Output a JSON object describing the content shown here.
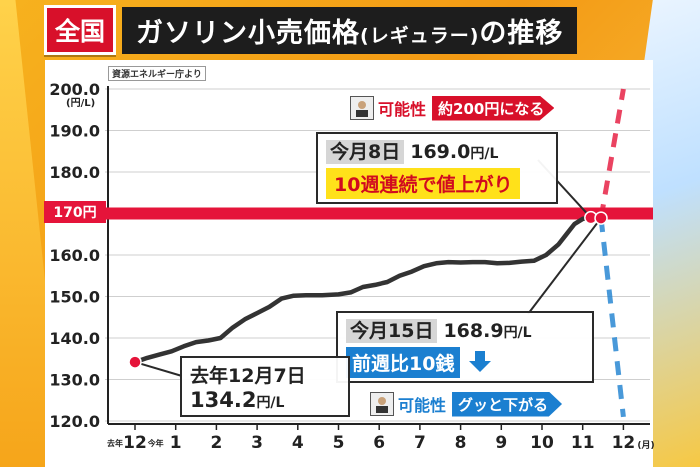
{
  "header": {
    "badge": "全国",
    "title_main": "ガソリン小売価格",
    "title_sub": "(レギュラー)",
    "title_end": "の推移"
  },
  "source": "資源エネルギー庁より",
  "y_unit": "(円/L)",
  "reference_line": {
    "value": 170,
    "label": "170円"
  },
  "callouts": {
    "latest": {
      "tag": "今月8日",
      "value": "169.0",
      "unit": "円/L",
      "note": "10週連続で値上がり"
    },
    "current": {
      "tag": "今月15日",
      "value": "168.9",
      "unit": "円/L",
      "note": "前週比10銭",
      "arrow": "down-arrow-icon"
    },
    "start": {
      "line1": "去年12月7日",
      "value": "134.2",
      "unit": "円/L"
    }
  },
  "scenarios": {
    "up": {
      "label": "可能性",
      "text": "約200円になる",
      "color": "#d8102a"
    },
    "down": {
      "label": "可能性",
      "text": "グッと下がる",
      "color": "#1b7fd0"
    }
  },
  "colors": {
    "line": "#333333",
    "ref_line": "#e5143a",
    "grid": "#cfcfcf",
    "marker": "#e5143a"
  },
  "chart_data": {
    "type": "line",
    "title": "ガソリン小売価格(レギュラー)の推移",
    "ylabel": "(円/L)",
    "xlabel": "(月)",
    "ylim": [
      120,
      200
    ],
    "yticks": [
      "120.0",
      "130.0",
      "140.0",
      "150.0",
      "160.0",
      "170.0",
      "180.0",
      "190.0",
      "200.0"
    ],
    "xticks": [
      {
        "x": 0,
        "label": "12",
        "prefix": "去年"
      },
      {
        "x": 1,
        "label": "1",
        "prefix": "今年"
      },
      {
        "x": 2,
        "label": "2"
      },
      {
        "x": 3,
        "label": "3"
      },
      {
        "x": 4,
        "label": "4"
      },
      {
        "x": 5,
        "label": "5"
      },
      {
        "x": 6,
        "label": "6"
      },
      {
        "x": 7,
        "label": "7"
      },
      {
        "x": 8,
        "label": "8"
      },
      {
        "x": 9,
        "label": "9"
      },
      {
        "x": 10,
        "label": "10"
      },
      {
        "x": 11,
        "label": "11"
      },
      {
        "x": 12,
        "label": "12",
        "suffix": "(月)"
      }
    ],
    "series": [
      {
        "values": [
          [
            0.0,
            134.2
          ],
          [
            0.3,
            135.2
          ],
          [
            0.6,
            136.0
          ],
          [
            0.9,
            136.8
          ],
          [
            1.2,
            138.0
          ],
          [
            1.5,
            139.0
          ],
          [
            1.8,
            139.4
          ],
          [
            2.1,
            140.0
          ],
          [
            2.4,
            142.5
          ],
          [
            2.7,
            144.5
          ],
          [
            3.0,
            146.0
          ],
          [
            3.3,
            147.5
          ],
          [
            3.6,
            149.5
          ],
          [
            3.9,
            150.2
          ],
          [
            4.2,
            150.3
          ],
          [
            4.6,
            150.3
          ],
          [
            5.0,
            150.5
          ],
          [
            5.3,
            151.0
          ],
          [
            5.6,
            152.3
          ],
          [
            5.9,
            152.8
          ],
          [
            6.2,
            153.5
          ],
          [
            6.5,
            155.0
          ],
          [
            6.8,
            156.0
          ],
          [
            7.1,
            157.3
          ],
          [
            7.4,
            158.0
          ],
          [
            7.7,
            158.3
          ],
          [
            8.0,
            158.2
          ],
          [
            8.3,
            158.3
          ],
          [
            8.6,
            158.3
          ],
          [
            8.9,
            158.0
          ],
          [
            9.2,
            158.1
          ],
          [
            9.5,
            158.4
          ],
          [
            9.8,
            158.6
          ],
          [
            10.1,
            160.0
          ],
          [
            10.4,
            162.5
          ],
          [
            10.6,
            165.0
          ],
          [
            10.8,
            167.5
          ],
          [
            11.0,
            168.7
          ],
          [
            11.2,
            169.0
          ],
          [
            11.45,
            168.9
          ]
        ]
      }
    ],
    "projections": [
      {
        "name": "約200円になる",
        "from": [
          11.45,
          168.9
        ],
        "to": [
          12.0,
          200.0
        ],
        "style": "dashed",
        "color": "#e5143a"
      },
      {
        "name": "グッと下がる",
        "from": [
          11.45,
          168.9
        ],
        "to": [
          12.0,
          121.0
        ],
        "style": "dashed",
        "color": "#1b7fd0"
      }
    ],
    "points": [
      {
        "x": 0.0,
        "y": 134.2,
        "label": "去年12月7日 134.2円/L"
      },
      {
        "x": 11.2,
        "y": 169.0,
        "label": "今月8日 169.0円/L"
      },
      {
        "x": 11.45,
        "y": 168.9,
        "label": "今月15日 168.9円/L"
      }
    ]
  }
}
